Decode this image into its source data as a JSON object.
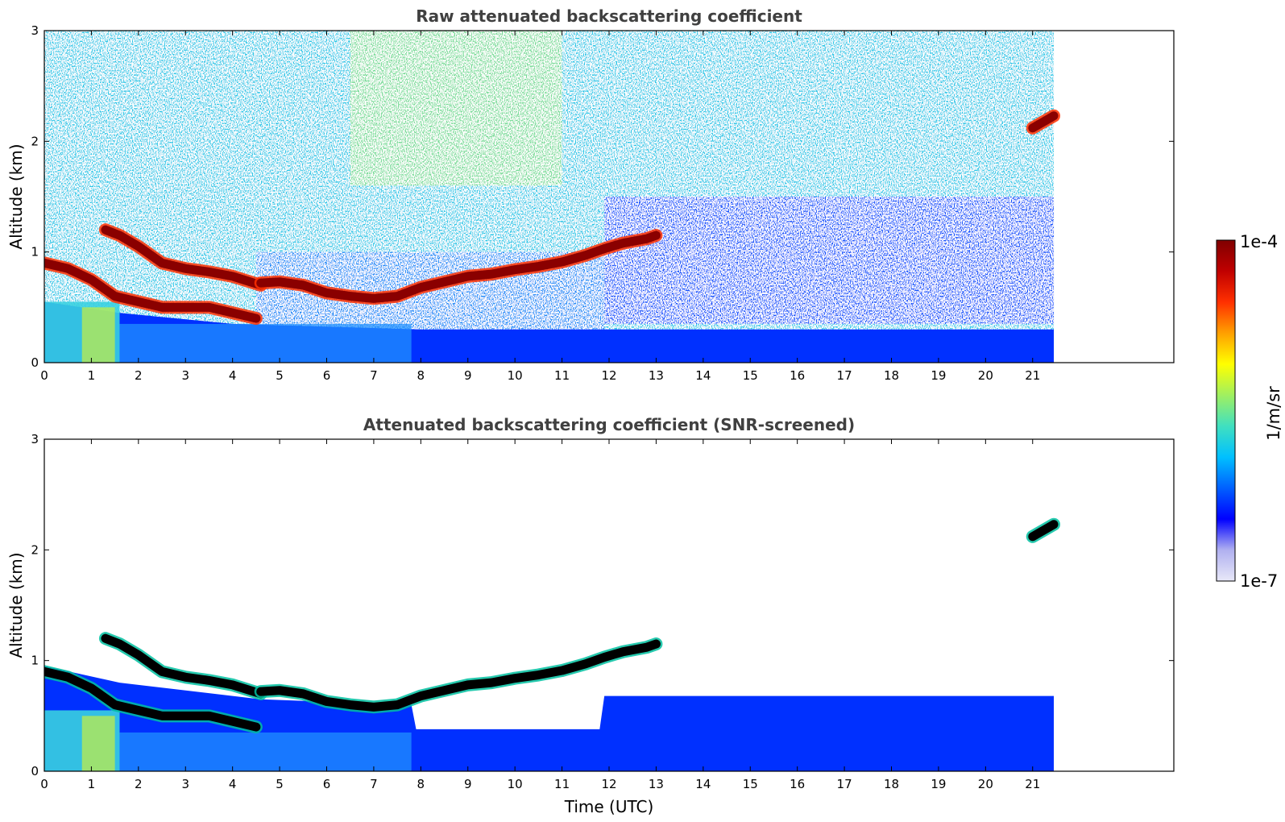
{
  "figure": {
    "panels": [
      {
        "title": "Raw attenuated backscattering coefficient",
        "ylabel": "Altitude (km)",
        "xlabel": "",
        "xticks": [
          "0",
          "1",
          "2",
          "3",
          "4",
          "5",
          "6",
          "7",
          "8",
          "9",
          "10",
          "11",
          "12",
          "13",
          "14",
          "15",
          "16",
          "17",
          "18",
          "19",
          "20",
          "21"
        ],
        "yticks": [
          "0",
          "1",
          "2",
          "3"
        ]
      },
      {
        "title": "Attenuated backscattering coefficient (SNR-screened)",
        "ylabel": "Altitude (km)",
        "xlabel": "Time (UTC)",
        "xticks": [
          "0",
          "1",
          "2",
          "3",
          "4",
          "5",
          "6",
          "7",
          "8",
          "9",
          "10",
          "11",
          "12",
          "13",
          "14",
          "15",
          "16",
          "17",
          "18",
          "19",
          "20",
          "21"
        ],
        "yticks": [
          "0",
          "1",
          "2",
          "3"
        ]
      }
    ],
    "colorbar": {
      "label": "1/m/sr",
      "max_label": "1e-4",
      "min_label": "1e-7",
      "scale": "log",
      "range": [
        1e-07,
        0.0001
      ],
      "colormap": [
        "#e8e8f8",
        "#b0b0f0",
        "#0000ff",
        "#0060ff",
        "#00c0ff",
        "#40e0c0",
        "#a0f060",
        "#ffff00",
        "#ffa000",
        "#ff3000",
        "#c00000",
        "#800000"
      ]
    }
  },
  "chart_data": [
    {
      "type": "heatmap",
      "title": "Raw attenuated backscattering coefficient",
      "xlabel": "",
      "ylabel": "Altitude (km)",
      "xlim": [
        0,
        24
      ],
      "ylim": [
        0,
        3
      ],
      "data_extent_x": [
        0,
        21.45
      ],
      "value_units": "1/m/sr",
      "value_scale": "log",
      "value_range": [
        1e-07,
        0.0001
      ],
      "cloud_layers": [
        {
          "points": [
            [
              0,
              0.9
            ],
            [
              0.5,
              0.85
            ],
            [
              1,
              0.75
            ],
            [
              1.5,
              0.6
            ],
            [
              2,
              0.55
            ],
            [
              2.5,
              0.5
            ],
            [
              3,
              0.5
            ],
            [
              3.5,
              0.5
            ],
            [
              4,
              0.45
            ],
            [
              4.5,
              0.4
            ]
          ],
          "value": 0.0001
        },
        {
          "points": [
            [
              1.3,
              1.2
            ],
            [
              1.6,
              1.15
            ],
            [
              2,
              1.05
            ],
            [
              2.5,
              0.9
            ],
            [
              3,
              0.85
            ],
            [
              3.5,
              0.82
            ],
            [
              4,
              0.78
            ],
            [
              4.6,
              0.7
            ]
          ],
          "value": 0.0001
        },
        {
          "points": [
            [
              4.6,
              0.72
            ],
            [
              5,
              0.73
            ],
            [
              5.5,
              0.7
            ],
            [
              6,
              0.63
            ],
            [
              6.5,
              0.6
            ],
            [
              7,
              0.58
            ],
            [
              7.5,
              0.6
            ],
            [
              8,
              0.68
            ],
            [
              8.5,
              0.73
            ],
            [
              9,
              0.78
            ],
            [
              9.5,
              0.8
            ],
            [
              10,
              0.84
            ],
            [
              10.5,
              0.87
            ],
            [
              11,
              0.91
            ],
            [
              11.5,
              0.97
            ],
            [
              11.9,
              1.03
            ],
            [
              12.3,
              1.08
            ],
            [
              12.8,
              1.12
            ],
            [
              13.0,
              1.15
            ]
          ],
          "value": 0.0001
        },
        {
          "points": [
            [
              21.0,
              2.12
            ],
            [
              21.45,
              2.23
            ]
          ],
          "value": 0.0001
        }
      ],
      "aerosol_layer": {
        "top_km": [
          [
            0,
            0.55
          ],
          [
            1.6,
            0.45
          ],
          [
            4,
            0.35
          ],
          [
            8,
            0.3
          ],
          [
            12,
            0.3
          ],
          [
            21.45,
            0.3
          ]
        ],
        "near_ground_value": 3e-06
      },
      "background_noise": "speckled noise above layers, strongest 7–10 UTC at 2–3 km"
    },
    {
      "type": "heatmap",
      "title": "Attenuated backscattering coefficient (SNR-screened)",
      "xlabel": "Time (UTC)",
      "ylabel": "Altitude (km)",
      "xlim": [
        0,
        24
      ],
      "ylim": [
        0,
        3
      ],
      "data_extent_x": [
        0,
        21.45
      ],
      "value_units": "1/m/sr",
      "value_scale": "log",
      "value_range": [
        1e-07,
        0.0001
      ],
      "cloud_layers": [
        {
          "points": [
            [
              0,
              0.9
            ],
            [
              0.5,
              0.85
            ],
            [
              1,
              0.75
            ],
            [
              1.5,
              0.6
            ],
            [
              2,
              0.55
            ],
            [
              2.5,
              0.5
            ],
            [
              3,
              0.5
            ],
            [
              3.5,
              0.5
            ],
            [
              4,
              0.45
            ],
            [
              4.5,
              0.4
            ]
          ],
          "value": "saturated"
        },
        {
          "points": [
            [
              1.3,
              1.2
            ],
            [
              1.6,
              1.15
            ],
            [
              2,
              1.05
            ],
            [
              2.5,
              0.9
            ],
            [
              3,
              0.85
            ],
            [
              3.5,
              0.82
            ],
            [
              4,
              0.78
            ],
            [
              4.6,
              0.7
            ]
          ],
          "value": "saturated"
        },
        {
          "points": [
            [
              4.6,
              0.72
            ],
            [
              5,
              0.73
            ],
            [
              5.5,
              0.7
            ],
            [
              6,
              0.63
            ],
            [
              6.5,
              0.6
            ],
            [
              7,
              0.58
            ],
            [
              7.5,
              0.6
            ],
            [
              8,
              0.68
            ],
            [
              8.5,
              0.73
            ],
            [
              9,
              0.78
            ],
            [
              9.5,
              0.8
            ],
            [
              10,
              0.84
            ],
            [
              10.5,
              0.87
            ],
            [
              11,
              0.91
            ],
            [
              11.5,
              0.97
            ],
            [
              11.9,
              1.03
            ],
            [
              12.3,
              1.08
            ],
            [
              12.8,
              1.12
            ],
            [
              13.0,
              1.15
            ]
          ],
          "value": "saturated"
        },
        {
          "points": [
            [
              21.0,
              2.12
            ],
            [
              21.45,
              2.23
            ]
          ],
          "value": "saturated"
        }
      ],
      "aerosol_layer": {
        "top_km": [
          [
            0,
            0.95
          ],
          [
            1.6,
            0.8
          ],
          [
            4.6,
            0.65
          ],
          [
            7.8,
            0.6
          ],
          [
            7.9,
            0.38
          ],
          [
            11.8,
            0.38
          ],
          [
            11.9,
            0.68
          ],
          [
            21.45,
            0.68
          ]
        ],
        "near_ground_value": 3e-06
      },
      "screened_out": "noise above aerosol layer removed (white)"
    }
  ]
}
